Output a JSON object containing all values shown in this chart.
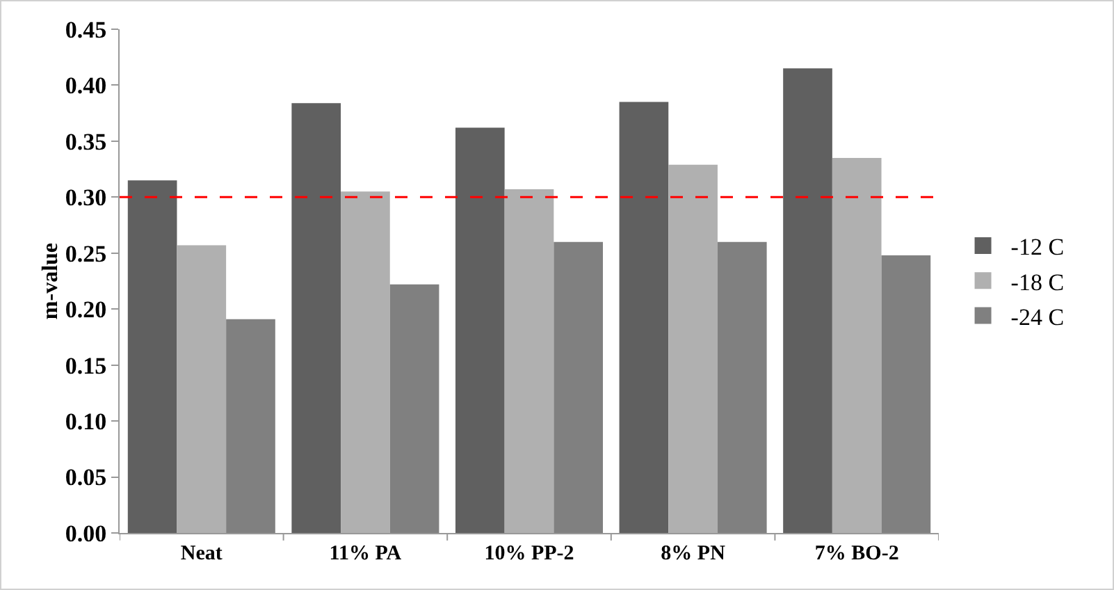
{
  "chart_data": {
    "type": "bar",
    "ylabel": "m-value",
    "categories": [
      "Neat",
      "11% PA",
      "10% PP-2",
      "8% PN",
      "7% BO-2"
    ],
    "series": [
      {
        "name": "-12 C",
        "color": "#606060",
        "values": [
          0.315,
          0.384,
          0.362,
          0.385,
          0.415
        ]
      },
      {
        "name": "-18 C",
        "color": "#b0b0b0",
        "values": [
          0.257,
          0.305,
          0.307,
          0.329,
          0.335
        ]
      },
      {
        "name": "-24 C",
        "color": "#808080",
        "values": [
          0.191,
          0.222,
          0.26,
          0.26,
          0.248
        ]
      }
    ],
    "ylim": [
      0,
      0.45
    ],
    "yticks": [
      {
        "value": 0,
        "label": "0.00"
      },
      {
        "value": 0.05,
        "label": "0.05"
      },
      {
        "value": 0.1,
        "label": "0.10"
      },
      {
        "value": 0.15,
        "label": "0.15"
      },
      {
        "value": 0.2,
        "label": "0.20"
      },
      {
        "value": 0.25,
        "label": "0.25"
      },
      {
        "value": 0.3,
        "label": "0.30"
      },
      {
        "value": 0.35,
        "label": "0.35"
      },
      {
        "value": 0.4,
        "label": "0.40"
      },
      {
        "value": 0.45,
        "label": "0.45"
      }
    ],
    "ref_lines": [
      {
        "axis": "y",
        "value": 0.3,
        "color": "#ff0000",
        "line_style": "dashed"
      }
    ],
    "grid": false,
    "legend": "right"
  }
}
